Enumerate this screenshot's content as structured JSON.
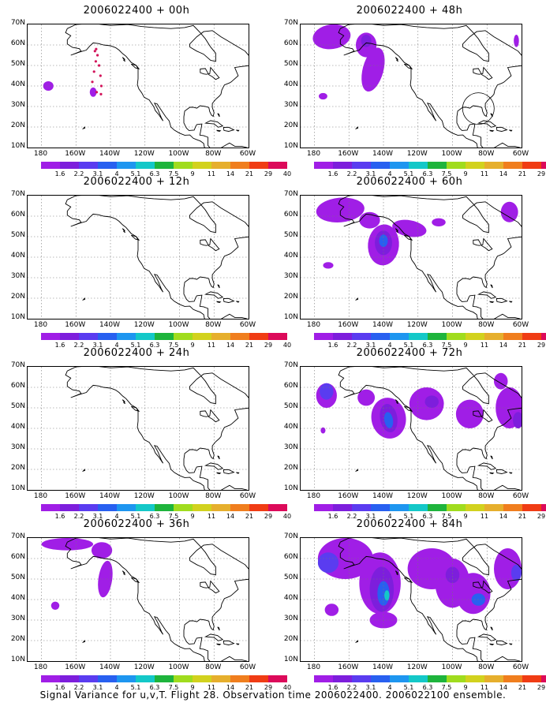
{
  "panels": [
    {
      "title": "2006022400 + 00h"
    },
    {
      "title": "2006022400 + 48h"
    },
    {
      "title": "2006022400 + 12h"
    },
    {
      "title": "2006022400 + 60h"
    },
    {
      "title": "2006022400 + 24h"
    },
    {
      "title": "2006022400 + 72h"
    },
    {
      "title": "2006022400 + 36h"
    },
    {
      "title": "2006022400 + 84h"
    }
  ],
  "axes": {
    "lat_labels": [
      "70N",
      "60N",
      "50N",
      "40N",
      "30N",
      "20N",
      "10N"
    ],
    "lon_labels": [
      "180",
      "160W",
      "140W",
      "120W",
      "100W",
      "80W",
      "60W"
    ]
  },
  "colorbar": {
    "labels": [
      "1.6",
      "2.2",
      "3.1",
      "4",
      "5.1",
      "6.3",
      "7.5",
      "9",
      "11",
      "14",
      "21",
      "29",
      "40"
    ],
    "colors": [
      "#a01ee6",
      "#7d1edc",
      "#5a3cf0",
      "#2860f0",
      "#1e96f0",
      "#14c8c8",
      "#1eb43c",
      "#a0dc1e",
      "#d2d21e",
      "#e6af2d",
      "#f07e1e",
      "#f03c14",
      "#dc0a5a"
    ]
  },
  "flight_track_color": "#d2145a",
  "caption": "Signal Variance for u,v,T. Flight 28. Observation time 2006022400. 2006022100 ensemble."
}
